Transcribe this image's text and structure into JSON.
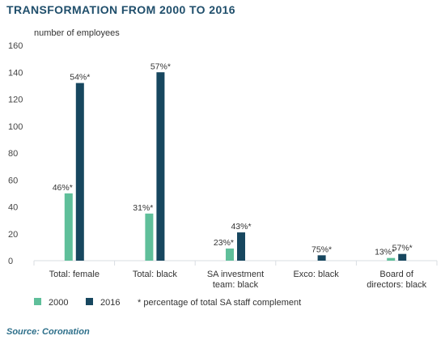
{
  "title": "TRANSFORMATION FROM 2000 TO 2016",
  "source": "Source: Coronation",
  "colors": {
    "series_2000": "#5fbf9a",
    "series_2016": "#17475f",
    "grid": "#d9dde2"
  },
  "chart_data": {
    "type": "bar",
    "title": "TRANSFORMATION FROM 2000 TO 2016",
    "ylabel": "number of employees",
    "xlabel": "",
    "ylim": [
      0,
      160
    ],
    "yticks": [
      0,
      20,
      40,
      60,
      80,
      100,
      120,
      140,
      160
    ],
    "grid": false,
    "legend_position": "bottom-left",
    "categories": [
      [
        "Total: female"
      ],
      [
        "Total: black"
      ],
      [
        "SA investment",
        "team: black"
      ],
      [
        "Exco: black"
      ],
      [
        "Board of",
        "directors: black"
      ]
    ],
    "series": [
      {
        "name": "2000",
        "values": [
          50,
          35,
          9,
          null,
          2
        ],
        "labels": [
          "46%*",
          "31%*",
          "23%*",
          "",
          "13%*"
        ]
      },
      {
        "name": "2016",
        "values": [
          132,
          140,
          21,
          4,
          5
        ],
        "labels": [
          "54%*",
          "57%*",
          "43%*",
          "75%*",
          "57%*"
        ]
      }
    ],
    "footnote": "* percentage of total SA staff complement"
  }
}
